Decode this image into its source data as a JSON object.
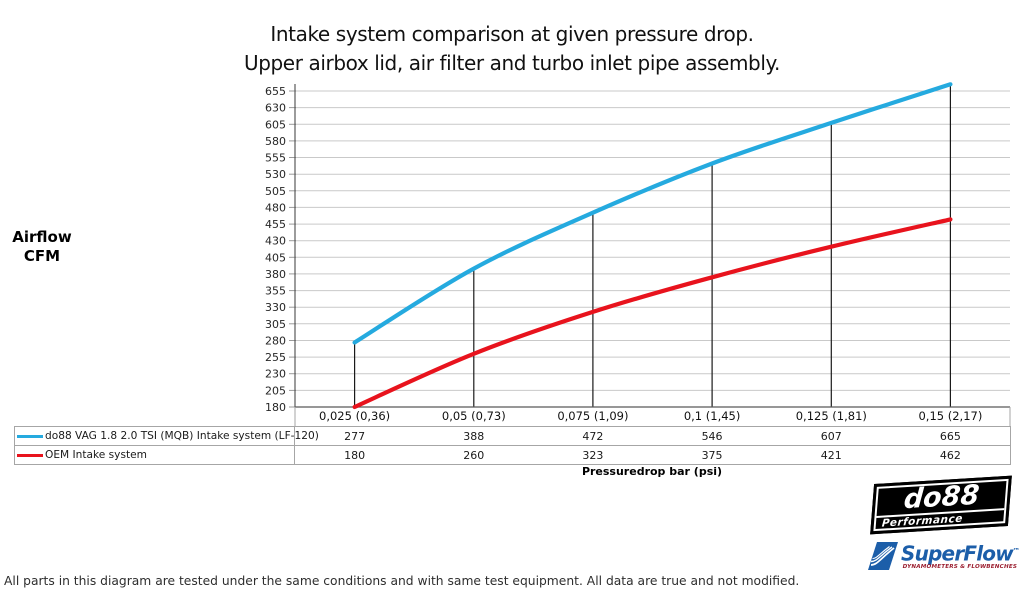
{
  "title": {
    "line1": "Intake system comparison at given pressure drop.",
    "line2": "Upper airbox lid, air filter and turbo inlet pipe assembly."
  },
  "y_axis": {
    "label_line1": "Airflow",
    "label_line2": "CFM"
  },
  "x_axis": {
    "label": "Pressuredrop bar (psi)"
  },
  "chart_data": {
    "type": "line",
    "title": "Intake system comparison at given pressure drop. Upper airbox lid, air filter and turbo inlet pipe assembly.",
    "xlabel": "Pressuredrop bar (psi)",
    "ylabel": "Airflow CFM",
    "categories": [
      "0,025 (0,36)",
      "0,05 (0,73)",
      "0,075 (1,09)",
      "0,1 (1,45)",
      "0,125 (1,81)",
      "0,15 (2,17)"
    ],
    "series": [
      {
        "name": "do88 VAG 1.8 2.0 TSI (MQB) Intake system (LF-120)",
        "color": "#25aadf",
        "values": [
          277,
          388,
          472,
          546,
          607,
          665
        ]
      },
      {
        "name": "OEM Intake system",
        "color": "#e8131d",
        "values": [
          180,
          260,
          323,
          375,
          421,
          462
        ]
      }
    ],
    "ylim": [
      180,
      655
    ],
    "y_tick_step": 25,
    "y_ticks": [
      180,
      205,
      230,
      255,
      280,
      305,
      330,
      355,
      380,
      405,
      430,
      455,
      480,
      505,
      530,
      555,
      580,
      605,
      630,
      655
    ],
    "grid": true,
    "legend_position": "table-left",
    "droplines": "vertical black line at each category from x-axis to top series"
  },
  "footer": {
    "text": "All parts in this diagram are tested under the same conditions and with same test equipment. All data are true and not modified."
  },
  "logos": {
    "do88": {
      "name": "do88",
      "tagline": "Performance"
    },
    "superflow": {
      "name": "SuperFlow",
      "trademark": "™",
      "tagline": "DYNAMOMETERS & FLOWBENCHES"
    }
  },
  "colors": {
    "series_do88": "#25aadf",
    "series_oem": "#e8131d",
    "gridline": "#c9c9c9",
    "axis": "#595959",
    "dropline": "#1a1a1a",
    "table_border": "#a6a6a6",
    "superflow_blue": "#1c5ea9",
    "superflow_tagline": "#9b1f30",
    "do88_black": "#000000"
  }
}
